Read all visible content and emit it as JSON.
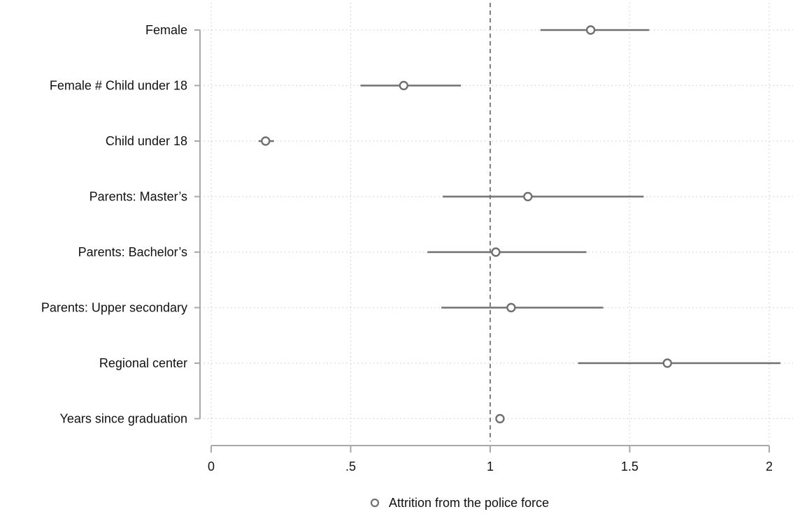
{
  "chart_data": {
    "type": "scatter",
    "subtype": "coefficient-plot",
    "title": "",
    "xlabel": "",
    "ylabel": "",
    "xlim": [
      0,
      2
    ],
    "x_ticks": [
      0,
      0.5,
      1,
      1.5,
      2
    ],
    "x_tick_labels": [
      "0",
      ".5",
      "1",
      "1.5",
      "2"
    ],
    "reference_line": 1,
    "grid": true,
    "legend_position": "bottom",
    "series": [
      {
        "name": "Attrition from the police force",
        "color": "#707070",
        "points": [
          {
            "label": "Female",
            "estimate": 1.36,
            "ci_low": 1.18,
            "ci_high": 1.57
          },
          {
            "label": "Female # Child under 18",
            "estimate": 0.69,
            "ci_low": 0.535,
            "ci_high": 0.895
          },
          {
            "label": "Child under 18",
            "estimate": 0.195,
            "ci_low": 0.17,
            "ci_high": 0.225
          },
          {
            "label": "Parents: Master’s",
            "estimate": 1.135,
            "ci_low": 0.83,
            "ci_high": 1.55
          },
          {
            "label": "Parents: Bachelor’s ",
            "estimate": 1.02,
            "ci_low": 0.775,
            "ci_high": 1.345
          },
          {
            "label": "Parents: Upper secondary",
            "estimate": 1.075,
            "ci_low": 0.825,
            "ci_high": 1.405
          },
          {
            "label": "Regional center",
            "estimate": 1.635,
            "ci_low": 1.315,
            "ci_high": 2.04
          },
          {
            "label": "Years since graduation",
            "estimate": 1.035,
            "ci_low": 1.02,
            "ci_high": 1.05
          }
        ]
      }
    ]
  }
}
